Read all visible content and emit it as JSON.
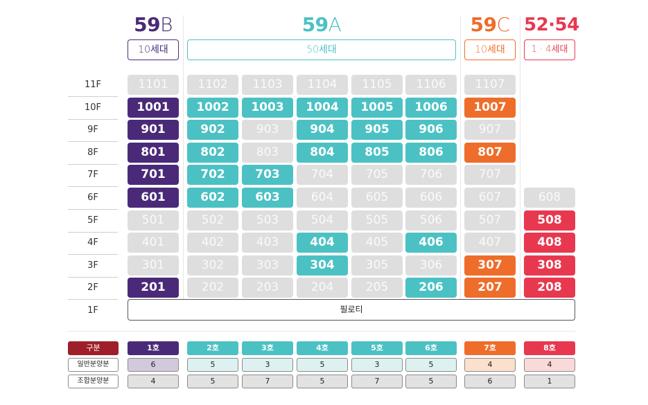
{
  "types": [
    {
      "key": "59B",
      "num": "59",
      "letter": "B",
      "units": "10세대",
      "color": "#4a2a78"
    },
    {
      "key": "59A",
      "num": "59",
      "letter": "A",
      "units": "50세대",
      "color": "#4cc1c4"
    },
    {
      "key": "59C",
      "num": "59",
      "letter": "C",
      "units": "10세대",
      "color": "#ee6d2a"
    },
    {
      "key": "52.54",
      "num": "52·54",
      "letter": "",
      "units": "1 · 4세대",
      "color": "#e8384f"
    }
  ],
  "colors": {
    "59B": "#4a2a78",
    "59A": "#4cc1c4",
    "59C": "#ee6d2a",
    "52.54": "#e8384f",
    "unavailable": "#dedede"
  },
  "floors": [
    "11F",
    "10F",
    "9F",
    "8F",
    "7F",
    "6F",
    "5F",
    "4F",
    "3F",
    "2F",
    "1F"
  ],
  "grid": [
    [
      "1101|off",
      "1102|off",
      "1103|off",
      "1104|off",
      "1105|off",
      "1106|off",
      "1107|off",
      ""
    ],
    [
      "1001|purple",
      "1002|teal",
      "1003|teal",
      "1004|teal",
      "1005|teal",
      "1006|teal",
      "1007|orange",
      ""
    ],
    [
      "901|purple",
      "902|teal",
      "903|off",
      "904|teal",
      "905|teal",
      "906|teal",
      "907|off",
      ""
    ],
    [
      "801|purple",
      "802|teal",
      "803|off",
      "804|teal",
      "805|teal",
      "806|teal",
      "807|orange",
      ""
    ],
    [
      "701|purple",
      "702|teal",
      "703|teal",
      "704|off",
      "705|off",
      "706|off",
      "707|off",
      ""
    ],
    [
      "601|purple",
      "602|teal",
      "603|teal",
      "604|off",
      "605|off",
      "606|off",
      "607|off",
      "608|off"
    ],
    [
      "501|off",
      "502|off",
      "503|off",
      "504|off",
      "505|off",
      "506|off",
      "507|off",
      "508|red"
    ],
    [
      "401|off",
      "402|off",
      "403|off",
      "404|teal",
      "405|off",
      "406|teal",
      "407|off",
      "408|red"
    ],
    [
      "301|off",
      "302|off",
      "303|off",
      "304|teal",
      "305|off",
      "306|off",
      "307|orange",
      "308|red"
    ],
    [
      "201|purple",
      "202|off",
      "203|off",
      "204|off",
      "205|off",
      "206|teal",
      "207|orange",
      "208|red"
    ]
  ],
  "piloti": "필로티",
  "summary": {
    "header_label": "구분",
    "row_labels": [
      "일반분양분",
      "조합분양분"
    ],
    "lines": [
      "1호",
      "2호",
      "3호",
      "4호",
      "5호",
      "6호",
      "7호",
      "8호"
    ],
    "general": [
      "6",
      "5",
      "3",
      "5",
      "3",
      "5",
      "4",
      "4"
    ],
    "union": [
      "4",
      "5",
      "7",
      "5",
      "7",
      "5",
      "6",
      "1"
    ]
  }
}
